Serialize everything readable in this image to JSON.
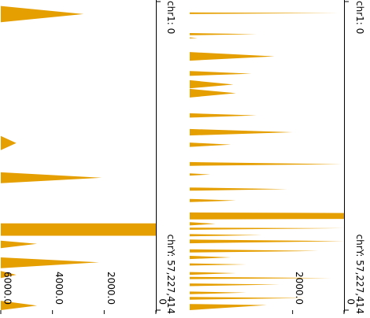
{
  "colors": {
    "fill": "#E69F00",
    "axis": "#000000",
    "background": "#ffffff"
  },
  "chart_data": [
    {
      "type": "area",
      "orientation": "rotated",
      "position_start_label": "chr1: 0",
      "position_end_label": "chrY: 57,227,414",
      "xlim": [
        0,
        57227414
      ],
      "ylim": [
        0,
        6000
      ],
      "value_ticks": [
        {
          "value": 0,
          "label": "0"
        },
        {
          "value": 2000,
          "label": "2000.0"
        },
        {
          "value": 4000,
          "label": "4000.0"
        },
        {
          "value": 6000,
          "label": "6000.0"
        }
      ],
      "baseline": 6000,
      "points": [
        [
          0,
          6000
        ],
        [
          1100000,
          6000
        ],
        [
          2600000,
          2800
        ],
        [
          4100000,
          6000
        ],
        [
          25100000,
          6000
        ],
        [
          26400000,
          5400
        ],
        [
          27700000,
          6000
        ],
        [
          31800000,
          6000
        ],
        [
          32800000,
          2100
        ],
        [
          33800000,
          6000
        ],
        [
          41200000,
          6000
        ],
        [
          41200000,
          0
        ],
        [
          43500000,
          0
        ],
        [
          43500000,
          6000
        ],
        [
          44400000,
          6000
        ],
        [
          45000000,
          4600
        ],
        [
          45800000,
          6000
        ],
        [
          47500000,
          6000
        ],
        [
          48400000,
          2200
        ],
        [
          49500000,
          6000
        ],
        [
          50000000,
          6000
        ],
        [
          50700000,
          5400
        ],
        [
          51300000,
          6000
        ],
        [
          55500000,
          6000
        ],
        [
          56400000,
          4600
        ],
        [
          57227414,
          6000
        ]
      ]
    },
    {
      "type": "area",
      "orientation": "rotated",
      "position_start_label": "chr1: 0",
      "position_end_label": "chrY: 57,227,414",
      "xlim": [
        0,
        57227414
      ],
      "ylim": [
        0,
        6000
      ],
      "value_ticks": [
        {
          "value": 0,
          "label": "0"
        },
        {
          "value": 2000,
          "label": "2000.0"
        }
      ],
      "baseline": 6000,
      "points": [
        [
          0,
          6000
        ],
        [
          2300000,
          6000
        ],
        [
          2400000,
          200
        ],
        [
          2600000,
          6000
        ],
        [
          6100000,
          6000
        ],
        [
          6300000,
          3400
        ],
        [
          6500000,
          6000
        ],
        [
          6900000,
          6000
        ],
        [
          7000000,
          5700
        ],
        [
          7100000,
          6000
        ],
        [
          9600000,
          6000
        ],
        [
          10400000,
          2700
        ],
        [
          11200000,
          6000
        ],
        [
          13100000,
          6000
        ],
        [
          13600000,
          3600
        ],
        [
          14000000,
          6000
        ],
        [
          14800000,
          6000
        ],
        [
          15600000,
          4300
        ],
        [
          16300000,
          6000
        ],
        [
          16400000,
          6000
        ],
        [
          17200000,
          4200
        ],
        [
          18000000,
          6000
        ],
        [
          20900000,
          6000
        ],
        [
          21300000,
          3400
        ],
        [
          21700000,
          6000
        ],
        [
          23800000,
          6000
        ],
        [
          24400000,
          2000
        ],
        [
          25000000,
          6000
        ],
        [
          26300000,
          6000
        ],
        [
          26700000,
          4400
        ],
        [
          27100000,
          6000
        ],
        [
          29900000,
          6000
        ],
        [
          30300000,
          100
        ],
        [
          30600000,
          6000
        ],
        [
          32000000,
          6000
        ],
        [
          32200000,
          5200
        ],
        [
          32400000,
          6000
        ],
        [
          34600000,
          6000
        ],
        [
          34900000,
          2200
        ],
        [
          35200000,
          6000
        ],
        [
          36700000,
          6000
        ],
        [
          37000000,
          4200
        ],
        [
          37300000,
          6000
        ],
        [
          39200000,
          6000
        ],
        [
          39300000,
          0
        ],
        [
          40400000,
          0
        ],
        [
          40500000,
          6000
        ],
        [
          41000000,
          6000
        ],
        [
          41300000,
          5000
        ],
        [
          41600000,
          6000
        ],
        [
          42000000,
          6000
        ],
        [
          42100000,
          0
        ],
        [
          42400000,
          6000
        ],
        [
          43200000,
          6000
        ],
        [
          43400000,
          3200
        ],
        [
          43600000,
          6000
        ],
        [
          44200000,
          6000
        ],
        [
          44500000,
          0
        ],
        [
          44900000,
          6000
        ],
        [
          46000000,
          6000
        ],
        [
          46300000,
          1000
        ],
        [
          46600000,
          6000
        ],
        [
          47200000,
          6000
        ],
        [
          47500000,
          4400
        ],
        [
          47800000,
          6000
        ],
        [
          48600000,
          6000
        ],
        [
          48800000,
          3800
        ],
        [
          49000000,
          6000
        ],
        [
          50200000,
          6000
        ],
        [
          50400000,
          4200
        ],
        [
          50700000,
          6000
        ],
        [
          51100000,
          6000
        ],
        [
          51300000,
          500
        ],
        [
          51500000,
          6000
        ],
        [
          52300000,
          6000
        ],
        [
          52500000,
          2500
        ],
        [
          52800000,
          6000
        ],
        [
          53800000,
          6000
        ],
        [
          54000000,
          3800
        ],
        [
          54300000,
          6000
        ],
        [
          54800000,
          6000
        ],
        [
          55000000,
          1500
        ],
        [
          55300000,
          6000
        ],
        [
          56100000,
          6000
        ],
        [
          56300000,
          3000
        ],
        [
          57227414,
          6000
        ]
      ]
    }
  ]
}
